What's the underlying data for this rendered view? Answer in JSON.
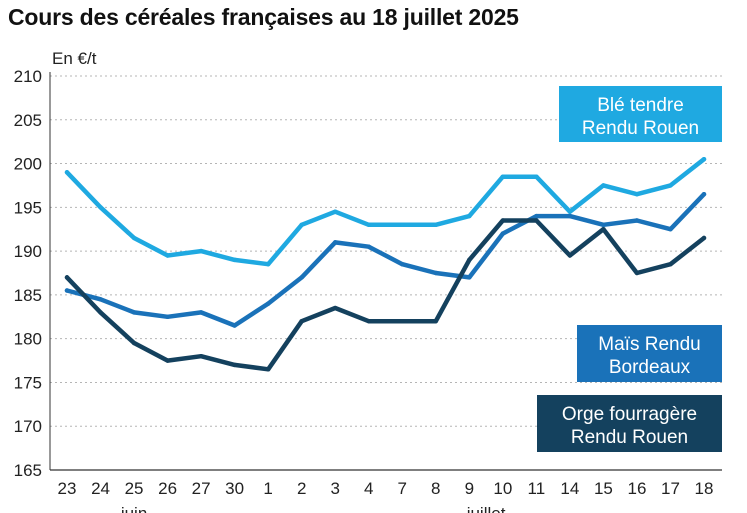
{
  "chart_data": {
    "type": "line",
    "title": "Cours des céréales françaises au 18 juillet 2025",
    "ylabel": "En €/t",
    "xlabel": "",
    "ylim": [
      165,
      210
    ],
    "yticks": [
      165,
      170,
      175,
      180,
      185,
      190,
      195,
      200,
      205,
      210
    ],
    "grid": true,
    "categories": [
      "23",
      "24",
      "25",
      "26",
      "27",
      "30",
      "1",
      "2",
      "3",
      "4",
      "7",
      "8",
      "9",
      "10",
      "11",
      "14",
      "15",
      "16",
      "17",
      "18"
    ],
    "month_labels": [
      {
        "label": "juin",
        "at_index": 2
      },
      {
        "label": "juillet",
        "at_index": 12.5
      }
    ],
    "series": [
      {
        "name": "Blé tendre Rendu Rouen",
        "legend_lines": [
          "Blé tendre",
          "Rendu Rouen"
        ],
        "color": "#1fa9e1",
        "values": [
          199,
          195,
          191.5,
          189.5,
          190,
          189,
          188.5,
          193,
          194.5,
          193,
          193,
          193,
          194,
          198.5,
          198.5,
          194.5,
          197.5,
          196.5,
          197.5,
          200.5
        ]
      },
      {
        "name": "Maïs Rendu Bordeaux",
        "legend_lines": [
          "Maïs Rendu",
          "Bordeaux"
        ],
        "color": "#1a72b9",
        "values": [
          185.5,
          184.5,
          183,
          182.5,
          183,
          181.5,
          184,
          187,
          191,
          190.5,
          188.5,
          187.5,
          187,
          192,
          194,
          194,
          193,
          193.5,
          192.5,
          196.5
        ]
      },
      {
        "name": "Orge fourragère Rendu Rouen",
        "legend_lines": [
          "Orge fourragère",
          "Rendu Rouen"
        ],
        "color": "#14415e",
        "values": [
          187,
          183,
          179.5,
          177.5,
          178,
          177,
          176.5,
          182,
          183.5,
          182,
          182,
          182,
          189,
          193.5,
          193.5,
          189.5,
          192.5,
          187.5,
          188.5,
          191.5
        ]
      }
    ]
  }
}
